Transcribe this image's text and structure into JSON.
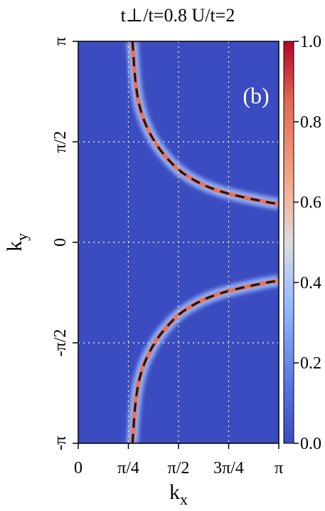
{
  "chart_data": {
    "type": "heatmap",
    "title": "t⊥/t=0.8  U/t=2",
    "panel_label": "(b)",
    "xlabel": "kx",
    "ylabel": "ky",
    "xlim": [
      0,
      3.14159
    ],
    "ylim": [
      -3.14159,
      3.14159
    ],
    "x_ticks": [
      {
        "value": 0,
        "label": "0"
      },
      {
        "value": 0.7854,
        "label": "π/4"
      },
      {
        "value": 1.5708,
        "label": "π/2"
      },
      {
        "value": 2.3562,
        "label": "3π/4"
      },
      {
        "value": 3.14159,
        "label": "π"
      }
    ],
    "y_ticks": [
      {
        "value": -3.14159,
        "label": "-π"
      },
      {
        "value": -1.5708,
        "label": "-π/2"
      },
      {
        "value": 0,
        "label": "0"
      },
      {
        "value": 1.5708,
        "label": "π/2"
      },
      {
        "value": 3.14159,
        "label": "π"
      }
    ],
    "grid": true,
    "colorbar": {
      "range": [
        0.0,
        1.0
      ],
      "ticks": [
        "0.0",
        "0.2",
        "0.4",
        "0.6",
        "0.8",
        "1.0"
      ],
      "colors": {
        "low": "#3b4cc0",
        "mid": "#dddddd",
        "high": "#b40426"
      }
    },
    "background_value": 0.0,
    "fermi_surface_upper": {
      "x": [
        0.85,
        0.9,
        1.0,
        1.2,
        1.4,
        1.6,
        1.9,
        2.2,
        2.6,
        3.0,
        3.14159
      ],
      "y": [
        3.14,
        2.4,
        1.95,
        1.55,
        1.3,
        1.1,
        0.92,
        0.8,
        0.7,
        0.62,
        0.6
      ]
    },
    "fermi_surface_lower": {
      "x": [
        0.85,
        0.9,
        1.0,
        1.2,
        1.4,
        1.6,
        1.9,
        2.2,
        2.6,
        3.0,
        3.14159
      ],
      "y": [
        -3.14,
        -2.4,
        -1.95,
        -1.55,
        -1.3,
        -1.1,
        -0.92,
        -0.8,
        -0.7,
        -0.62,
        -0.6
      ]
    },
    "peak_value": 0.8
  }
}
